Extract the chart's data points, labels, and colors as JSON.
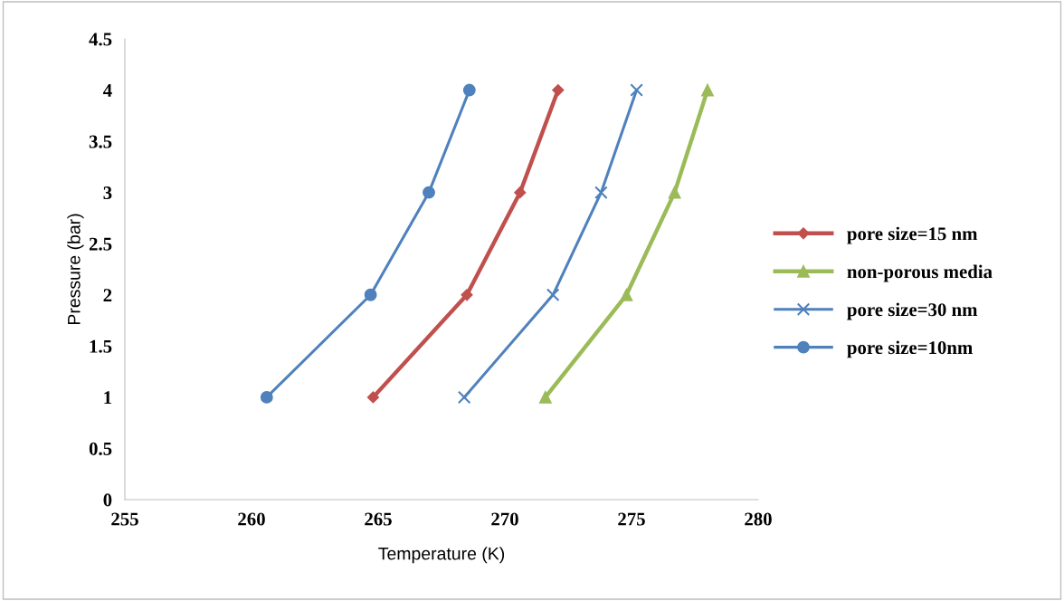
{
  "chart_data": {
    "type": "line",
    "xlabel": "Temperature (K)",
    "ylabel": "Pressure (bar)",
    "xlim": [
      255,
      280
    ],
    "xticks": [
      255,
      260,
      265,
      270,
      275,
      280
    ],
    "ylim": [
      0,
      4.5
    ],
    "yticks": [
      0,
      0.5,
      1,
      1.5,
      2,
      2.5,
      3,
      3.5,
      4,
      4.5
    ],
    "grid": false,
    "legend": "right",
    "line_style": "solid",
    "series": [
      {
        "name": "pore size=15 nm",
        "color": "#c0504d",
        "marker": "diamond",
        "x": [
          264.8,
          268.5,
          270.6,
          272.1
        ],
        "values": [
          1,
          2,
          3,
          4
        ]
      },
      {
        "name": "non-porous media",
        "color": "#9bbb59",
        "marker": "triangle",
        "x": [
          271.6,
          274.8,
          276.7,
          278.0
        ],
        "values": [
          1,
          2,
          3,
          4
        ]
      },
      {
        "name": "pore size=30 nm",
        "color": "#4f81bd",
        "marker": "cross",
        "x": [
          268.4,
          271.9,
          273.8,
          275.2
        ],
        "values": [
          1,
          2,
          3,
          4
        ]
      },
      {
        "name": "pore size=10nm",
        "color": "#4f81bd",
        "marker": "circle",
        "x": [
          260.6,
          264.7,
          267.0,
          268.6
        ],
        "values": [
          1,
          2,
          3,
          4
        ]
      }
    ]
  }
}
